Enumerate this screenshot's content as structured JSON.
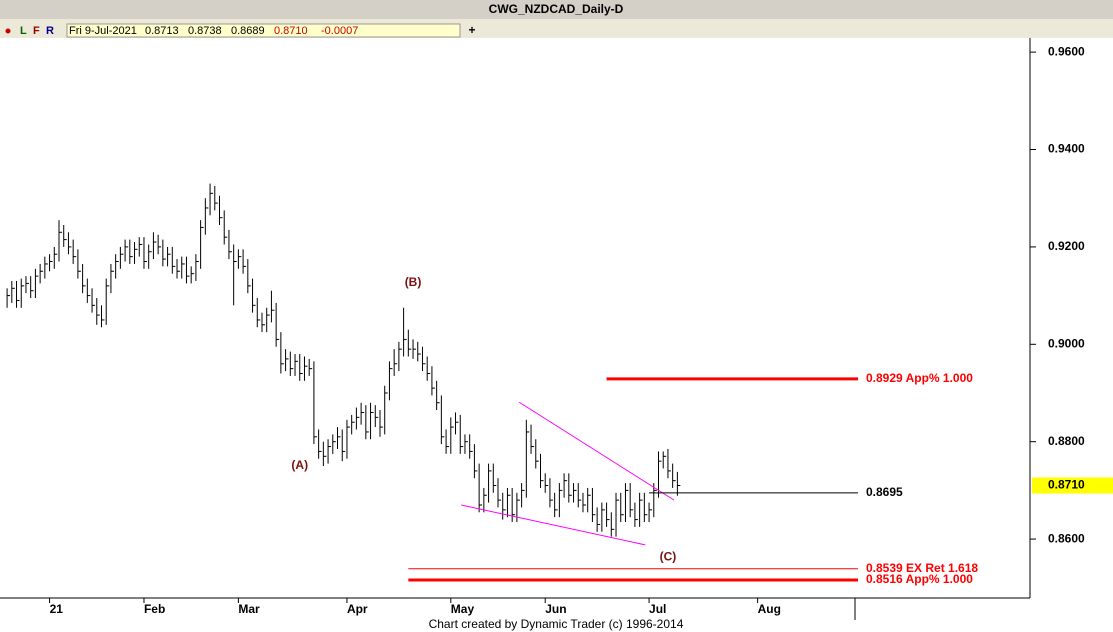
{
  "chart_data": {
    "type": "hlc",
    "title": "CWG_NZDCAD_Daily-D",
    "toolbar": {
      "buttons": [
        "L",
        "F",
        "R"
      ],
      "date": "Fri 9-Jul-2021",
      "open": "0.8713",
      "high": "0.8738",
      "low": "0.8689",
      "close": "0.8710",
      "change": "-0.0007"
    },
    "footer": "Chart created by Dynamic Trader  (c) 1996-2014",
    "color": "#000000",
    "xlim": [
      -1.5,
      216.7
    ],
    "xticks": [
      {
        "value": 9,
        "label": "21"
      },
      {
        "value": 29,
        "label": "Feb"
      },
      {
        "value": 49,
        "label": "Mar"
      },
      {
        "value": 72,
        "label": "Apr"
      },
      {
        "value": 94,
        "label": "May"
      },
      {
        "value": 114,
        "label": "Jun"
      },
      {
        "value": 136,
        "label": "Jul"
      },
      {
        "value": 159,
        "label": "Aug"
      }
    ],
    "ylim": [
      0.8479,
      0.9629
    ],
    "yticks": [
      {
        "value": 0.86,
        "label": "0.8600"
      },
      {
        "value": 0.88,
        "label": "0.8800"
      },
      {
        "value": 0.9,
        "label": "0.9000"
      },
      {
        "value": 0.92,
        "label": "0.9200"
      },
      {
        "value": 0.94,
        "label": "0.9400"
      },
      {
        "value": 0.96,
        "label": "0.9600"
      }
    ],
    "last_price": {
      "value": 0.871,
      "label": "0.8710"
    },
    "bars": [
      [
        0.9115,
        0.9075,
        0.91
      ],
      [
        0.913,
        0.9085,
        0.9115
      ],
      [
        0.913,
        0.9075,
        0.909
      ],
      [
        0.9135,
        0.9075,
        0.912
      ],
      [
        0.914,
        0.9105,
        0.9125
      ],
      [
        0.914,
        0.9095,
        0.911
      ],
      [
        0.9155,
        0.9095,
        0.914
      ],
      [
        0.9165,
        0.9125,
        0.915
      ],
      [
        0.918,
        0.9135,
        0.9165
      ],
      [
        0.9185,
        0.915,
        0.917
      ],
      [
        0.92,
        0.9155,
        0.9185
      ],
      [
        0.9255,
        0.917,
        0.923
      ],
      [
        0.9245,
        0.92,
        0.9215
      ],
      [
        0.923,
        0.9185,
        0.92
      ],
      [
        0.9215,
        0.9165,
        0.918
      ],
      [
        0.9195,
        0.9135,
        0.915
      ],
      [
        0.9165,
        0.9105,
        0.912
      ],
      [
        0.9135,
        0.9085,
        0.91
      ],
      [
        0.9115,
        0.9065,
        0.908
      ],
      [
        0.9095,
        0.904,
        0.906
      ],
      [
        0.908,
        0.9035,
        0.905
      ],
      [
        0.9135,
        0.904,
        0.912
      ],
      [
        0.9165,
        0.9105,
        0.915
      ],
      [
        0.9185,
        0.9135,
        0.917
      ],
      [
        0.92,
        0.9155,
        0.9185
      ],
      [
        0.9215,
        0.917,
        0.92
      ],
      [
        0.9215,
        0.9165,
        0.918
      ],
      [
        0.921,
        0.9165,
        0.9195
      ],
      [
        0.922,
        0.918,
        0.9205
      ],
      [
        0.922,
        0.9155,
        0.917
      ],
      [
        0.9205,
        0.9155,
        0.919
      ],
      [
        0.923,
        0.9175,
        0.921
      ],
      [
        0.9225,
        0.9185,
        0.92
      ],
      [
        0.9215,
        0.916,
        0.9175
      ],
      [
        0.92,
        0.916,
        0.9185
      ],
      [
        0.92,
        0.9145,
        0.916
      ],
      [
        0.9175,
        0.9135,
        0.915
      ],
      [
        0.918,
        0.9135,
        0.9165
      ],
      [
        0.918,
        0.9125,
        0.914
      ],
      [
        0.916,
        0.9125,
        0.9145
      ],
      [
        0.9185,
        0.913,
        0.917
      ],
      [
        0.9255,
        0.9155,
        0.924
      ],
      [
        0.93,
        0.9225,
        0.928
      ],
      [
        0.933,
        0.9265,
        0.931
      ],
      [
        0.9325,
        0.9275,
        0.929
      ],
      [
        0.9305,
        0.9245,
        0.926
      ],
      [
        0.9275,
        0.9205,
        0.922
      ],
      [
        0.9235,
        0.9175,
        0.919
      ],
      [
        0.9205,
        0.908,
        0.917
      ],
      [
        0.9195,
        0.9155,
        0.918
      ],
      [
        0.9195,
        0.9145,
        0.916
      ],
      [
        0.9175,
        0.9105,
        0.912
      ],
      [
        0.9135,
        0.9065,
        0.908
      ],
      [
        0.9095,
        0.9035,
        0.905
      ],
      [
        0.9065,
        0.9025,
        0.904
      ],
      [
        0.9075,
        0.9025,
        0.906
      ],
      [
        0.911,
        0.9045,
        0.907
      ],
      [
        0.9085,
        0.8995,
        0.901
      ],
      [
        0.9025,
        0.894,
        0.896
      ],
      [
        0.899,
        0.8945,
        0.897
      ],
      [
        0.8985,
        0.8935,
        0.895
      ],
      [
        0.898,
        0.8935,
        0.8965
      ],
      [
        0.898,
        0.8925,
        0.894
      ],
      [
        0.8975,
        0.8925,
        0.8955
      ],
      [
        0.897,
        0.8935,
        0.895
      ],
      [
        0.8965,
        0.8795,
        0.881
      ],
      [
        0.8825,
        0.8765,
        0.878
      ],
      [
        0.88,
        0.875,
        0.877
      ],
      [
        0.8805,
        0.8755,
        0.879
      ],
      [
        0.8815,
        0.8775,
        0.88
      ],
      [
        0.883,
        0.8785,
        0.881
      ],
      [
        0.8825,
        0.876,
        0.878
      ],
      [
        0.8845,
        0.8765,
        0.883
      ],
      [
        0.8855,
        0.8815,
        0.884
      ],
      [
        0.887,
        0.8825,
        0.885
      ],
      [
        0.888,
        0.8835,
        0.886
      ],
      [
        0.8875,
        0.8805,
        0.882
      ],
      [
        0.888,
        0.8805,
        0.886
      ],
      [
        0.8875,
        0.883,
        0.885
      ],
      [
        0.8865,
        0.881,
        0.883
      ],
      [
        0.8915,
        0.8815,
        0.89
      ],
      [
        0.8965,
        0.8885,
        0.895
      ],
      [
        0.899,
        0.8935,
        0.896
      ],
      [
        0.9005,
        0.8945,
        0.899
      ],
      [
        0.9075,
        0.8975,
        0.901
      ],
      [
        0.903,
        0.8975,
        0.899
      ],
      [
        0.901,
        0.897,
        0.899
      ],
      [
        0.9005,
        0.8965,
        0.898
      ],
      [
        0.8995,
        0.8945,
        0.896
      ],
      [
        0.8975,
        0.8925,
        0.894
      ],
      [
        0.8955,
        0.8895,
        0.891
      ],
      [
        0.8925,
        0.8865,
        0.888
      ],
      [
        0.8895,
        0.8795,
        0.881
      ],
      [
        0.8825,
        0.8775,
        0.879
      ],
      [
        0.885,
        0.8775,
        0.883
      ],
      [
        0.886,
        0.8815,
        0.884
      ],
      [
        0.8855,
        0.8775,
        0.879
      ],
      [
        0.8815,
        0.8775,
        0.88
      ],
      [
        0.8815,
        0.8765,
        0.878
      ],
      [
        0.8795,
        0.8725,
        0.874
      ],
      [
        0.8755,
        0.8655,
        0.867
      ],
      [
        0.8705,
        0.8655,
        0.869
      ],
      [
        0.8755,
        0.8675,
        0.874
      ],
      [
        0.8755,
        0.8695,
        0.871
      ],
      [
        0.8725,
        0.8665,
        0.868
      ],
      [
        0.8695,
        0.864,
        0.866
      ],
      [
        0.8705,
        0.8645,
        0.869
      ],
      [
        0.8705,
        0.8635,
        0.865
      ],
      [
        0.8695,
        0.8635,
        0.868
      ],
      [
        0.8715,
        0.8665,
        0.87
      ],
      [
        0.8845,
        0.8685,
        0.882
      ],
      [
        0.8835,
        0.8775,
        0.879
      ],
      [
        0.8805,
        0.8745,
        0.876
      ],
      [
        0.8775,
        0.8705,
        0.872
      ],
      [
        0.8735,
        0.8695,
        0.871
      ],
      [
        0.8725,
        0.8665,
        0.868
      ],
      [
        0.8695,
        0.8645,
        0.866
      ],
      [
        0.8715,
        0.8645,
        0.87
      ],
      [
        0.8735,
        0.8685,
        0.872
      ],
      [
        0.8735,
        0.8675,
        0.869
      ],
      [
        0.8715,
        0.8675,
        0.87
      ],
      [
        0.8715,
        0.8665,
        0.868
      ],
      [
        0.8695,
        0.8655,
        0.867
      ],
      [
        0.8705,
        0.8655,
        0.869
      ],
      [
        0.8705,
        0.8635,
        0.865
      ],
      [
        0.8665,
        0.8615,
        0.863
      ],
      [
        0.8675,
        0.8615,
        0.866
      ],
      [
        0.8675,
        0.8625,
        0.864
      ],
      [
        0.8655,
        0.8605,
        0.862
      ],
      [
        0.8695,
        0.8605,
        0.868
      ],
      [
        0.8695,
        0.8635,
        0.865
      ],
      [
        0.8715,
        0.8635,
        0.87
      ],
      [
        0.8715,
        0.8645,
        0.866
      ],
      [
        0.8675,
        0.8625,
        0.864
      ],
      [
        0.8695,
        0.8625,
        0.868
      ],
      [
        0.8695,
        0.8635,
        0.865
      ],
      [
        0.8675,
        0.8635,
        0.866
      ],
      [
        0.8715,
        0.8645,
        0.87
      ],
      [
        0.878,
        0.8685,
        0.876
      ],
      [
        0.878,
        0.8745,
        0.877
      ],
      [
        0.8785,
        0.8725,
        0.874
      ],
      [
        0.8755,
        0.8705,
        0.872
      ],
      [
        0.8738,
        0.8689,
        0.871
      ]
    ],
    "levels": [
      {
        "value": 0.8929,
        "label": "0.8929 App% 1.000",
        "start": 127,
        "color": "#ff0000",
        "style": "thick"
      },
      {
        "value": 0.8695,
        "label": "0.8695",
        "start": 136,
        "color": "#000000",
        "style": "thin"
      },
      {
        "value": 0.8539,
        "label": "0.8539 EX Ret 1.618",
        "start": 85,
        "color": "#ff0000",
        "style": "thin"
      },
      {
        "value": 0.8516,
        "label": "0.8516 App% 1.000",
        "start": 85,
        "color": "#ff0000",
        "style": "thick"
      }
    ],
    "trendlines": [
      {
        "x": [
          108.5,
          141.3
        ],
        "y": [
          0.8881,
          0.868
        ],
        "color": "#ff00ff"
      },
      {
        "x": [
          96.2,
          135.2
        ],
        "y": [
          0.867,
          0.8588
        ],
        "color": "#ff00ff"
      }
    ],
    "annotations": [
      {
        "text": "(A)",
        "x": 62,
        "y": 0.875
      },
      {
        "text": "(B)",
        "x": 86,
        "y": 0.9126
      },
      {
        "text": "(C)",
        "x": 140,
        "y": 0.8563
      }
    ]
  }
}
